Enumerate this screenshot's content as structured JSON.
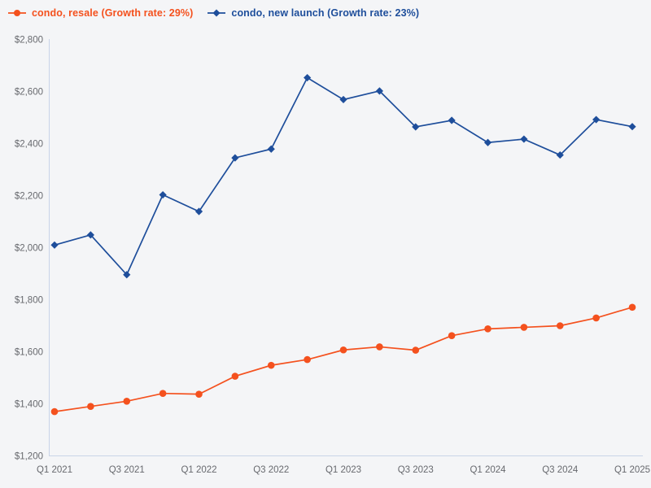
{
  "legend": {
    "resale_label": "condo, resale (Growth rate: 29%)",
    "new_launch_label": "condo, new launch (Growth rate: 23%)"
  },
  "colors": {
    "resale": "#f4511e",
    "new_launch": "#1e4e9b",
    "axis": "#c9d4e8",
    "tick_text": "#67696e",
    "background": "#f4f5f7"
  },
  "chart_data": {
    "type": "line",
    "title": "",
    "xlabel": "",
    "ylabel": "",
    "grid": false,
    "legend_position": "top-left",
    "ylim": [
      1200,
      2800
    ],
    "categories": [
      "Q1 2021",
      "Q2 2021",
      "Q3 2021",
      "Q4 2021",
      "Q1 2022",
      "Q2 2022",
      "Q3 2022",
      "Q4 2022",
      "Q1 2023",
      "Q2 2023",
      "Q3 2023",
      "Q4 2023",
      "Q1 2024",
      "Q2 2024",
      "Q3 2024",
      "Q4 2024",
      "Q1 2025"
    ],
    "series": [
      {
        "key": "resale",
        "name": "condo, resale",
        "growth_rate": "29%",
        "marker": "circle",
        "color_key": "resale",
        "values": [
          1370,
          1390,
          1410,
          1440,
          1437,
          1506,
          1548,
          1570,
          1607,
          1619,
          1606,
          1662,
          1688,
          1694,
          1700,
          1730,
          1771
        ]
      },
      {
        "key": "new-launch",
        "name": "condo, new launch",
        "growth_rate": "23%",
        "marker": "diamond",
        "color_key": "new_launch",
        "values": [
          2010,
          2049,
          1896,
          2203,
          2139,
          2345,
          2379,
          2653,
          2569,
          2602,
          2464,
          2489,
          2404,
          2417,
          2356,
          2492,
          2465
        ]
      }
    ],
    "y_ticks": [
      {
        "v": 1200,
        "label": "$1,200"
      },
      {
        "v": 1400,
        "label": "$1,400"
      },
      {
        "v": 1600,
        "label": "$1,600"
      },
      {
        "v": 1800,
        "label": "$1,800"
      },
      {
        "v": 2000,
        "label": "$2,000"
      },
      {
        "v": 2200,
        "label": "$2,200"
      },
      {
        "v": 2400,
        "label": "$2,400"
      },
      {
        "v": 2600,
        "label": "$2,600"
      },
      {
        "v": 2800,
        "label": "$2,800"
      }
    ],
    "x_ticks": [
      {
        "i": 0,
        "label": "Q1 2021"
      },
      {
        "i": 2,
        "label": "Q3 2021"
      },
      {
        "i": 4,
        "label": "Q1 2022"
      },
      {
        "i": 6,
        "label": "Q3 2022"
      },
      {
        "i": 8,
        "label": "Q1 2023"
      },
      {
        "i": 10,
        "label": "Q3 2023"
      },
      {
        "i": 12,
        "label": "Q1 2024"
      },
      {
        "i": 14,
        "label": "Q3 2024"
      },
      {
        "i": 16,
        "label": "Q1 2025"
      }
    ]
  }
}
